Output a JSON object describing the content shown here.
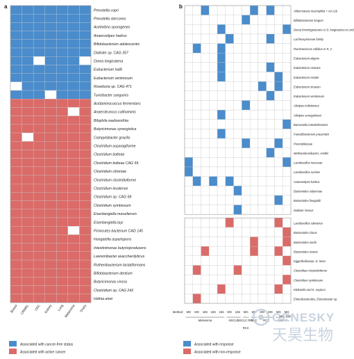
{
  "colors": {
    "blue": "#4a8ccc",
    "red": "#db6b68",
    "empty": "#ffffff",
    "grid": "#c8c8c8"
  },
  "chart_data": [
    {
      "type": "heatmap",
      "panel": "a",
      "columns": [
        "Breast",
        "CRMRL",
        "CRC",
        "Kidney",
        "Lung",
        "Melanoma",
        "Ovary"
      ],
      "rows": [
        "Prevotella copri",
        "Prevotella stercorea",
        "Acetivibrio sporogenes",
        "Anaerostipes hadrus",
        "Bifidobacterium adolescentis",
        "Dialister sp. CAG 357",
        "Dorea longicatena",
        "Eubacterium hallii",
        "Eubacterium ventriosum",
        "Roseburia sp. CAG 471",
        "Turicibacter sanguinis",
        "Acidaminococcus fermentans",
        "Anaerotruncus colihominis",
        "Bilophila wadsworthia",
        "Butyricimonas synergistica",
        "Campylobacter gracilis",
        "Clostridium asparagiforme",
        "Clostridium bolteae",
        "Clostridium bolteae CAG 59",
        "Clostridium citroniae",
        "Clostridium clostridioforme",
        "Clostridium lavalense",
        "Clostridium sp. CAG 58",
        "Clostridium symbiosum",
        "Eisenbergiella massiliensis",
        "Eisenbergiella tayi",
        "Firmicutes bacterium CAG 145",
        "Hungatella aspartopora",
        "Intestinimonas butyriciproducens",
        "Lawsonibacter asaccharolyticus",
        "Ruthenibacterium lactatiformans",
        "Bifidobacterium dentium",
        "Butyricimonas virosa",
        "Clostridium sp. CAG 242",
        "Hafnia alvei"
      ],
      "values_legend": {
        "1": "Associated with cancer-free status",
        "2": "Associated with active cancer",
        "0": ""
      },
      "values": [
        [
          1,
          1,
          1,
          1,
          1,
          1,
          1
        ],
        [
          1,
          1,
          1,
          1,
          1,
          1,
          1
        ],
        [
          1,
          1,
          1,
          1,
          1,
          1,
          1
        ],
        [
          1,
          1,
          1,
          1,
          1,
          1,
          1
        ],
        [
          1,
          1,
          1,
          1,
          1,
          1,
          1
        ],
        [
          1,
          1,
          1,
          1,
          1,
          1,
          1
        ],
        [
          1,
          1,
          0,
          1,
          1,
          1,
          0
        ],
        [
          1,
          1,
          1,
          1,
          1,
          1,
          1
        ],
        [
          1,
          1,
          1,
          1,
          1,
          1,
          1
        ],
        [
          0,
          1,
          1,
          1,
          1,
          1,
          1
        ],
        [
          1,
          1,
          1,
          0,
          1,
          1,
          1
        ],
        [
          2,
          2,
          2,
          2,
          2,
          2,
          2
        ],
        [
          2,
          2,
          2,
          2,
          2,
          0,
          2
        ],
        [
          2,
          2,
          2,
          2,
          2,
          2,
          2
        ],
        [
          2,
          2,
          2,
          2,
          2,
          2,
          2
        ],
        [
          2,
          0,
          2,
          2,
          2,
          2,
          2
        ],
        [
          2,
          2,
          2,
          2,
          2,
          2,
          2
        ],
        [
          2,
          2,
          2,
          2,
          2,
          2,
          2
        ],
        [
          2,
          2,
          2,
          2,
          2,
          2,
          2
        ],
        [
          2,
          2,
          2,
          2,
          2,
          2,
          2
        ],
        [
          2,
          2,
          2,
          2,
          2,
          2,
          2
        ],
        [
          2,
          2,
          2,
          2,
          2,
          2,
          2
        ],
        [
          2,
          2,
          2,
          2,
          2,
          2,
          2
        ],
        [
          2,
          2,
          2,
          2,
          2,
          2,
          2
        ],
        [
          2,
          2,
          2,
          2,
          2,
          2,
          2
        ],
        [
          2,
          2,
          2,
          2,
          2,
          2,
          2
        ],
        [
          2,
          2,
          2,
          2,
          2,
          0,
          2
        ],
        [
          2,
          2,
          2,
          2,
          2,
          2,
          2
        ],
        [
          2,
          2,
          2,
          2,
          2,
          2,
          2
        ],
        [
          2,
          2,
          2,
          2,
          2,
          2,
          2
        ],
        [
          2,
          2,
          2,
          2,
          2,
          2,
          2
        ],
        [
          2,
          2,
          2,
          2,
          2,
          2,
          2
        ],
        [
          2,
          2,
          2,
          2,
          2,
          2,
          2
        ],
        [
          2,
          2,
          2,
          2,
          2,
          2,
          2
        ],
        [
          2,
          2,
          2,
          2,
          2,
          2,
          2
        ]
      ],
      "legend": [
        {
          "label": "Associated with cancer-free status",
          "color": "blue"
        },
        {
          "label": "Associated with active cancer",
          "color": "red"
        }
      ]
    },
    {
      "type": "heatmap",
      "panel": "b",
      "method_label": "Method:",
      "columns": [
        "MG",
        "MG",
        "16S",
        "16S",
        "16S",
        "MG",
        "16S",
        "MG",
        "MG",
        "MG",
        "MG",
        "MG",
        "MG"
      ],
      "column_groups": [
        {
          "label": "Melanoma",
          "span": 5
        },
        {
          "label": "NSCLC",
          "span": 2
        },
        {
          "label": "NSCLC RCC",
          "span": 1
        },
        {
          "label": "RCC",
          "span": 1
        },
        {
          "label": "RCC",
          "span": 2
        },
        {
          "label": "NSCLC",
          "span": 2
        }
      ],
      "rcc_footnote": "RCC",
      "mg_subscript": "MG",
      "wgs_subscript": "WGS",
      "rows": [
        "Akkermansia muciniphila + A6 A26",
        "Bifidobacterium longum",
        "Dorea formicigenerans or D. longicatena or unclass.",
        "Lachnospiraceae family",
        "Ruminococcus callidus or R_2",
        "Eubacterium eligens",
        "Eubacterium ramulus",
        "Eubacterium rectale",
        "Eubacterium siraeum",
        "Eubacterium ventriosum",
        "Alistipes indistinctus",
        "Alistipes senegalensis",
        "Barnesiella intestinihominis",
        "Faecalibacterium prausnitzii",
        "Prevotellaceae",
        "Methanobrevibacter_smithii",
        "Lactobacillus mucosae",
        "Lactobacillus ruminis",
        "Anaerostipes hadrus",
        "Bacteroides salyersiae",
        "Bacteroides finegoldii",
        "Dialister invisus",
        "Lactobacillus salivarius",
        "Bacteroides clarus",
        "Bacteroides nordii",
        "Bacteroides ovatus",
        "Eggerthellaceae, E. lenta",
        "Clostridium clostridioforme",
        "Clostridium symbiosum",
        "Klebsiella and K. oxytoca",
        "Enterobacterales, Enterobacter sp."
      ],
      "values_legend": {
        "1": "Associated with response",
        "2": "Associated with non-response",
        "0": ""
      },
      "values": [
        [
          0,
          0,
          1,
          0,
          0,
          0,
          0,
          0,
          1,
          0,
          1,
          0,
          0
        ],
        [
          0,
          0,
          0,
          0,
          0,
          0,
          0,
          1,
          0,
          0,
          0,
          0,
          0
        ],
        [
          0,
          0,
          0,
          0,
          1,
          0,
          0,
          0,
          0,
          0,
          0,
          0,
          1
        ],
        [
          0,
          0,
          0,
          0,
          0,
          1,
          0,
          0,
          0,
          0,
          1,
          0,
          0
        ],
        [
          0,
          1,
          0,
          0,
          1,
          0,
          0,
          0,
          0,
          0,
          0,
          0,
          0
        ],
        [
          0,
          0,
          0,
          0,
          1,
          0,
          0,
          0,
          0,
          0,
          0,
          0,
          0
        ],
        [
          0,
          0,
          0,
          0,
          1,
          0,
          0,
          0,
          0,
          0,
          1,
          0,
          0
        ],
        [
          0,
          0,
          0,
          0,
          1,
          0,
          0,
          0,
          0,
          0,
          0,
          1,
          0
        ],
        [
          0,
          0,
          0,
          0,
          0,
          0,
          0,
          0,
          0,
          1,
          0,
          1,
          0
        ],
        [
          0,
          0,
          0,
          0,
          0,
          0,
          0,
          0,
          0,
          0,
          1,
          0,
          0
        ],
        [
          0,
          0,
          0,
          0,
          0,
          0,
          0,
          1,
          0,
          0,
          0,
          0,
          0
        ],
        [
          0,
          0,
          0,
          0,
          1,
          0,
          0,
          0,
          0,
          0,
          0,
          0,
          0
        ],
        [
          0,
          0,
          0,
          0,
          0,
          0,
          0,
          0,
          0,
          0,
          0,
          0,
          1
        ],
        [
          0,
          0,
          0,
          0,
          1,
          0,
          0,
          0,
          0,
          0,
          0,
          0,
          0
        ],
        [
          0,
          0,
          0,
          0,
          0,
          0,
          0,
          1,
          0,
          0,
          0,
          1,
          0
        ],
        [
          0,
          0,
          0,
          0,
          0,
          0,
          0,
          0,
          0,
          0,
          1,
          0,
          0
        ],
        [
          1,
          0,
          0,
          0,
          0,
          0,
          0,
          0,
          0,
          0,
          0,
          0,
          1
        ],
        [
          1,
          0,
          0,
          0,
          0,
          0,
          0,
          0,
          0,
          0,
          0,
          0,
          0
        ],
        [
          0,
          1,
          0,
          1,
          0,
          1,
          0,
          0,
          0,
          0,
          0,
          0,
          0
        ],
        [
          0,
          0,
          0,
          0,
          0,
          0,
          1,
          0,
          0,
          0,
          0,
          0,
          0
        ],
        [
          0,
          0,
          0,
          0,
          0,
          0,
          0,
          0,
          0,
          0,
          0,
          1,
          0
        ],
        [
          0,
          0,
          0,
          0,
          0,
          0,
          1,
          0,
          0,
          0,
          0,
          0,
          0
        ],
        [
          0,
          0,
          0,
          0,
          0,
          2,
          0,
          0,
          0,
          0,
          0,
          2,
          0
        ],
        [
          0,
          0,
          0,
          0,
          0,
          0,
          0,
          0,
          0,
          0,
          0,
          0,
          2
        ],
        [
          0,
          0,
          0,
          0,
          0,
          0,
          0,
          0,
          2,
          0,
          0,
          0,
          2
        ],
        [
          0,
          0,
          2,
          0,
          0,
          0,
          0,
          0,
          2,
          0,
          0,
          2,
          0
        ],
        [
          0,
          0,
          0,
          0,
          0,
          0,
          0,
          0,
          0,
          0,
          0,
          0,
          2
        ],
        [
          0,
          2,
          0,
          0,
          0,
          0,
          2,
          0,
          0,
          0,
          0,
          0,
          0
        ],
        [
          0,
          0,
          0,
          0,
          0,
          0,
          0,
          0,
          0,
          0,
          0,
          0,
          2
        ],
        [
          0,
          0,
          0,
          0,
          2,
          0,
          0,
          0,
          0,
          0,
          0,
          2,
          0
        ],
        [
          0,
          2,
          0,
          0,
          0,
          0,
          0,
          0,
          0,
          0,
          0,
          0,
          0
        ]
      ],
      "divider_after_row": 21,
      "legend": [
        {
          "label": "Associated with response",
          "color": "blue"
        },
        {
          "label": "Associated with non-response",
          "color": "red"
        }
      ]
    }
  ],
  "watermark": {
    "brand": "GENESKY",
    "chinese": "天昊生物"
  }
}
